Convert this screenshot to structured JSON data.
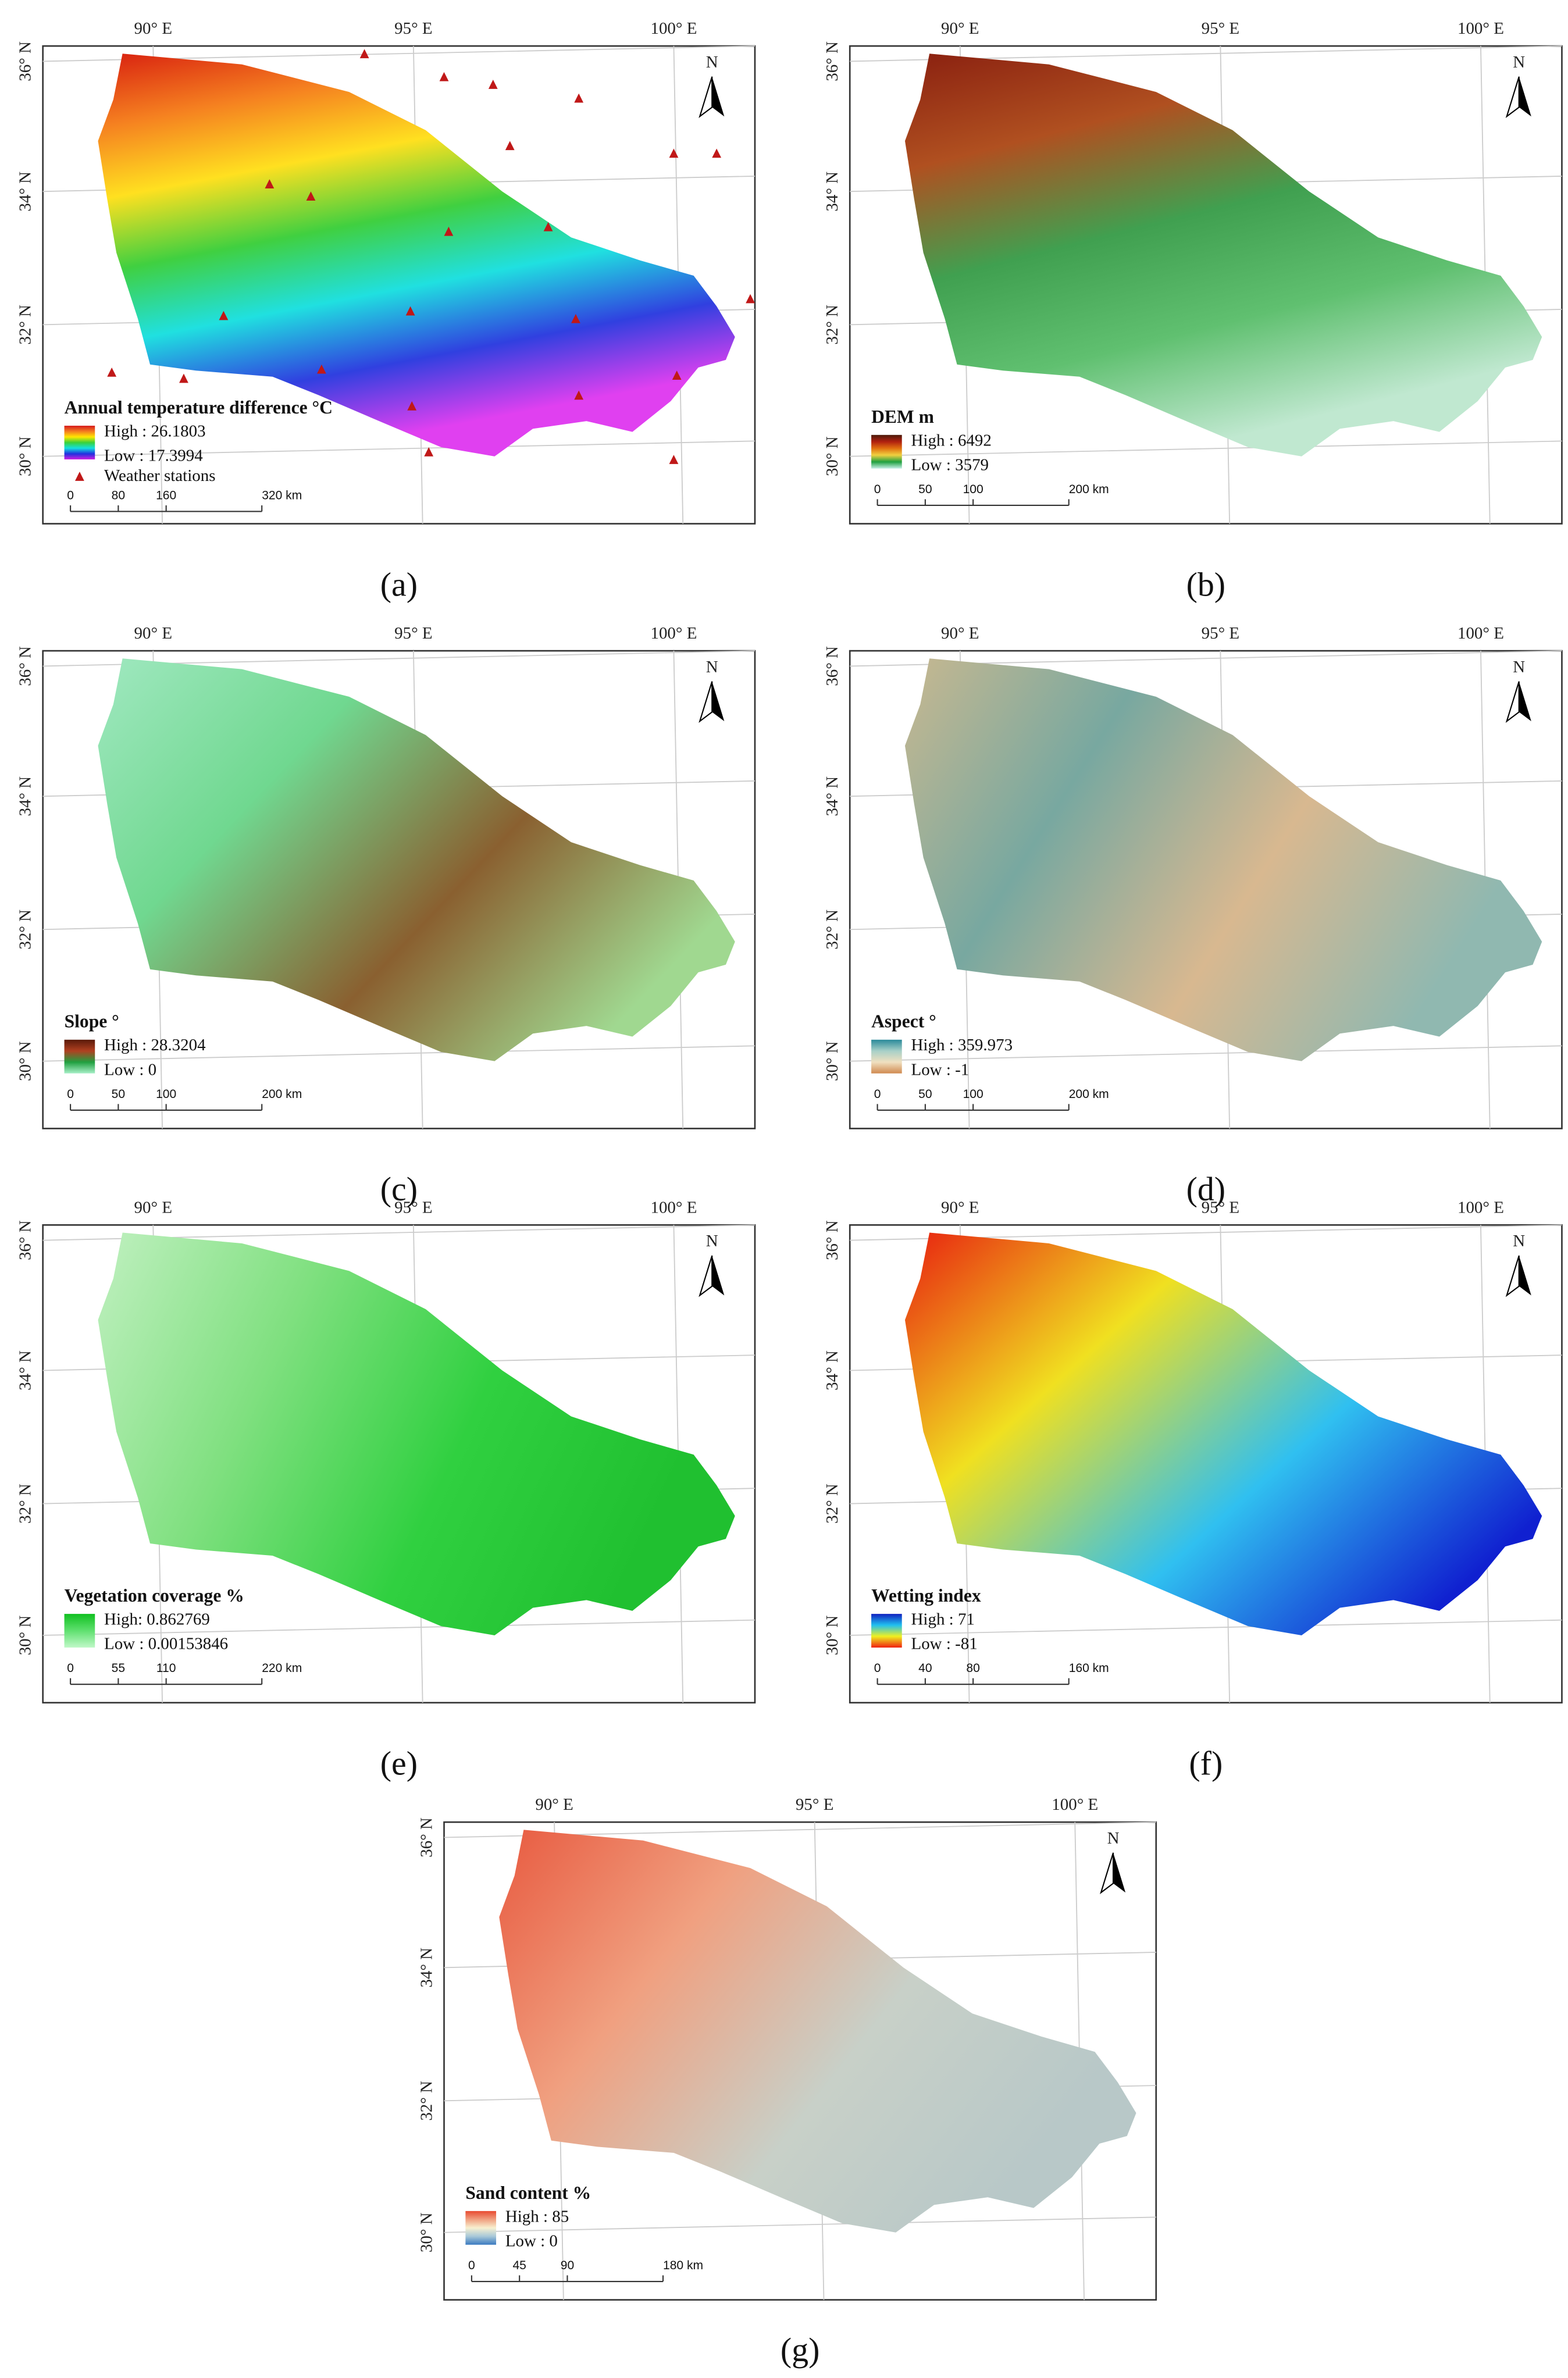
{
  "lon_labels": [
    "90° E",
    "95° E",
    "100° E"
  ],
  "lat_labels": [
    "36° N",
    "34° N",
    "32° N",
    "30° N"
  ],
  "north": "N",
  "panels": [
    {
      "caption": "(a)",
      "legend_title": "Annual temperature difference °C",
      "high": "High : 26.1803",
      "low": "Low : 17.3994",
      "stations": "Weather stations",
      "scale": [
        "0",
        "80",
        "160",
        "320 km"
      ]
    },
    {
      "caption": "(b)",
      "legend_title": "DEM  m",
      "high": "High : 6492",
      "low": "Low : 3579",
      "scale": [
        "0",
        "50",
        "100",
        "200 km"
      ]
    },
    {
      "caption": "(c)",
      "legend_title": "Slope  °",
      "high": "High : 28.3204",
      "low": "Low : 0",
      "scale": [
        "0",
        "50",
        "100",
        "200 km"
      ]
    },
    {
      "caption": "(d)",
      "legend_title": "Aspect  °",
      "high": "High : 359.973",
      "low": "Low : -1",
      "scale": [
        "0",
        "50",
        "100",
        "200 km"
      ]
    },
    {
      "caption": "(e)",
      "legend_title": "Vegetation coverage  %",
      "high": "High: 0.862769",
      "low": "Low : 0.00153846",
      "scale": [
        "0",
        "55",
        "110",
        "220 km"
      ]
    },
    {
      "caption": "(f)",
      "legend_title": "Wetting index",
      "high": "High : 71",
      "low": "Low : -81",
      "scale": [
        "0",
        "40",
        "80",
        "160 km"
      ]
    },
    {
      "caption": "(g)",
      "legend_title": "Sand content  %",
      "high": "High : 85",
      "low": "Low : 0",
      "scale": [
        "0",
        "45",
        "90",
        "180 km"
      ]
    }
  ]
}
